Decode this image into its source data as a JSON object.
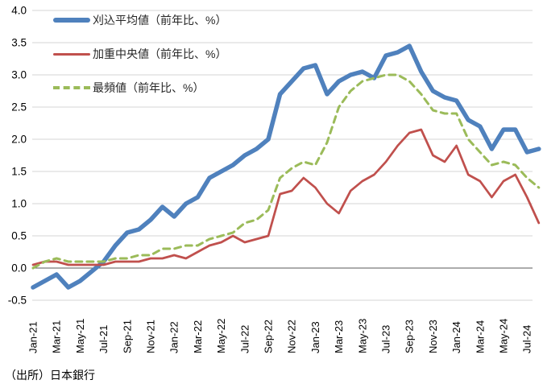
{
  "source": "（出所）日本銀行",
  "chart_data": {
    "type": "line",
    "title": "",
    "xlabel": "",
    "ylabel": "",
    "unit": "前年比、%",
    "grid": true,
    "legend_position": "top-left",
    "ylim": [
      -0.5,
      4.0
    ],
    "yticks": [
      "4.0",
      "3.5",
      "3.0",
      "2.5",
      "2.0",
      "1.5",
      "1.0",
      "0.5",
      "0.0",
      "-0.5"
    ],
    "x_tick_labels": [
      "Jan-21",
      "Mar-21",
      "May-21",
      "Jul-21",
      "Sep-21",
      "Nov-21",
      "Jan-22",
      "Mar-22",
      "May-22",
      "Jul-22",
      "Sep-22",
      "Nov-22",
      "Jan-23",
      "Mar-23",
      "May-23",
      "Jul-23",
      "Sep-23",
      "Nov-23",
      "Jan-24",
      "Mar-24",
      "May-24",
      "Jul-24"
    ],
    "months": [
      "Jan-21",
      "Feb-21",
      "Mar-21",
      "Apr-21",
      "May-21",
      "Jun-21",
      "Jul-21",
      "Aug-21",
      "Sep-21",
      "Oct-21",
      "Nov-21",
      "Dec-21",
      "Jan-22",
      "Feb-22",
      "Mar-22",
      "Apr-22",
      "May-22",
      "Jun-22",
      "Jul-22",
      "Aug-22",
      "Sep-22",
      "Oct-22",
      "Nov-22",
      "Dec-22",
      "Jan-23",
      "Feb-23",
      "Mar-23",
      "Apr-23",
      "May-23",
      "Jun-23",
      "Jul-23",
      "Aug-23",
      "Sep-23",
      "Oct-23",
      "Nov-23",
      "Dec-23",
      "Jan-24",
      "Feb-24",
      "Mar-24",
      "Apr-24",
      "May-24",
      "Jun-24",
      "Jul-24",
      "Aug-24"
    ],
    "series": [
      {
        "name": "刈込平均値（前年比、%）",
        "color": "#4F81BD",
        "style": "solid",
        "width": 5.5,
        "values": [
          -0.3,
          -0.2,
          -0.1,
          -0.3,
          -0.2,
          -0.05,
          0.1,
          0.35,
          0.55,
          0.6,
          0.75,
          0.95,
          0.8,
          1.0,
          1.1,
          1.4,
          1.5,
          1.6,
          1.75,
          1.85,
          2.0,
          2.7,
          2.9,
          3.1,
          3.15,
          2.7,
          2.9,
          3.0,
          3.05,
          2.95,
          3.3,
          3.35,
          3.45,
          3.05,
          2.75,
          2.65,
          2.6,
          2.3,
          2.2,
          1.85,
          2.15,
          2.15,
          1.8,
          1.85
        ]
      },
      {
        "name": "加重中央値（前年比、%）",
        "color": "#C0504D",
        "style": "solid",
        "width": 2.75,
        "values": [
          0.05,
          0.1,
          0.1,
          0.05,
          0.05,
          0.05,
          0.05,
          0.1,
          0.1,
          0.1,
          0.15,
          0.15,
          0.2,
          0.15,
          0.25,
          0.35,
          0.4,
          0.5,
          0.4,
          0.45,
          0.5,
          1.15,
          1.2,
          1.4,
          1.25,
          1.0,
          0.85,
          1.2,
          1.35,
          1.45,
          1.65,
          1.9,
          2.1,
          2.15,
          1.75,
          1.65,
          1.9,
          1.45,
          1.35,
          1.1,
          1.35,
          1.45,
          1.1,
          0.7
        ]
      },
      {
        "name": "最頻値（前年比、%）",
        "color": "#9BBB59",
        "style": "dashed",
        "width": 3,
        "values": [
          0.0,
          0.1,
          0.15,
          0.1,
          0.1,
          0.1,
          0.1,
          0.15,
          0.15,
          0.2,
          0.2,
          0.3,
          0.3,
          0.35,
          0.35,
          0.45,
          0.5,
          0.55,
          0.7,
          0.75,
          0.9,
          1.4,
          1.55,
          1.65,
          1.6,
          1.95,
          2.5,
          2.75,
          2.9,
          2.95,
          3.0,
          3.0,
          2.9,
          2.7,
          2.45,
          2.4,
          2.4,
          2.0,
          1.8,
          1.6,
          1.65,
          1.6,
          1.4,
          1.25
        ]
      }
    ],
    "colors": {
      "gridline": "#D6D6D6",
      "zero_axis": "#595959",
      "tick_text": "#000000"
    }
  }
}
